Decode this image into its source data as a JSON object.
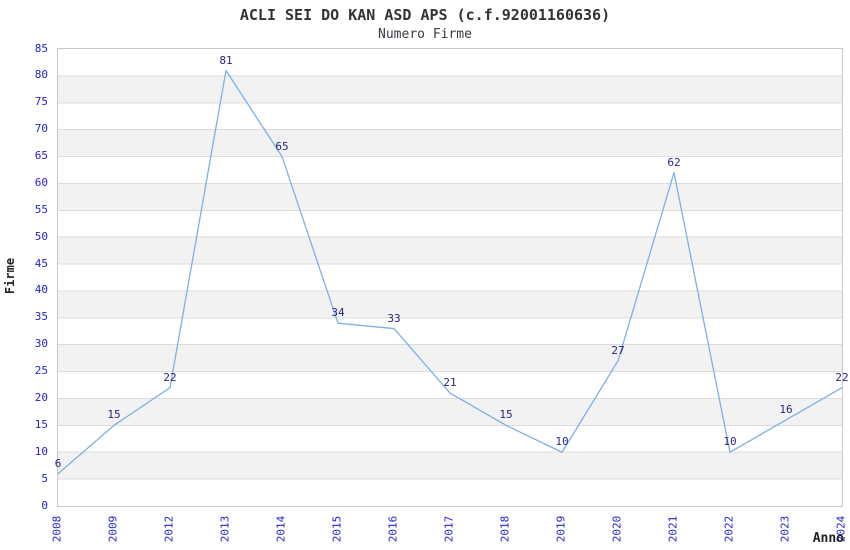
{
  "header": {
    "title": "ACLI SEI DO KAN ASD APS (c.f.92001160636)",
    "subtitle": "Numero Firme"
  },
  "chart_data": {
    "type": "line",
    "title": "ACLI SEI DO KAN ASD APS (c.f.92001160636)",
    "subtitle": "Numero Firme",
    "x": [
      "2008",
      "2009",
      "2012",
      "2013",
      "2014",
      "2015",
      "2016",
      "2017",
      "2018",
      "2019",
      "2020",
      "2021",
      "2022",
      "2023",
      "2024"
    ],
    "values": [
      6,
      15,
      22,
      81,
      65,
      34,
      33,
      21,
      15,
      10,
      27,
      62,
      10,
      16,
      22
    ],
    "xlabel": "Anno",
    "ylabel": "Firme",
    "ylim": [
      0,
      85
    ],
    "ytick_step": 5,
    "grid": true,
    "legend": "none",
    "colors": {
      "line": "#7cb0e8",
      "tick_labels": "#2323cc",
      "value_labels": "#26267a",
      "gridline": "#dcdcdc",
      "band_alt": "#f2f2f2",
      "plot_border": "#c8c8c8",
      "title_text": "#333333"
    }
  }
}
